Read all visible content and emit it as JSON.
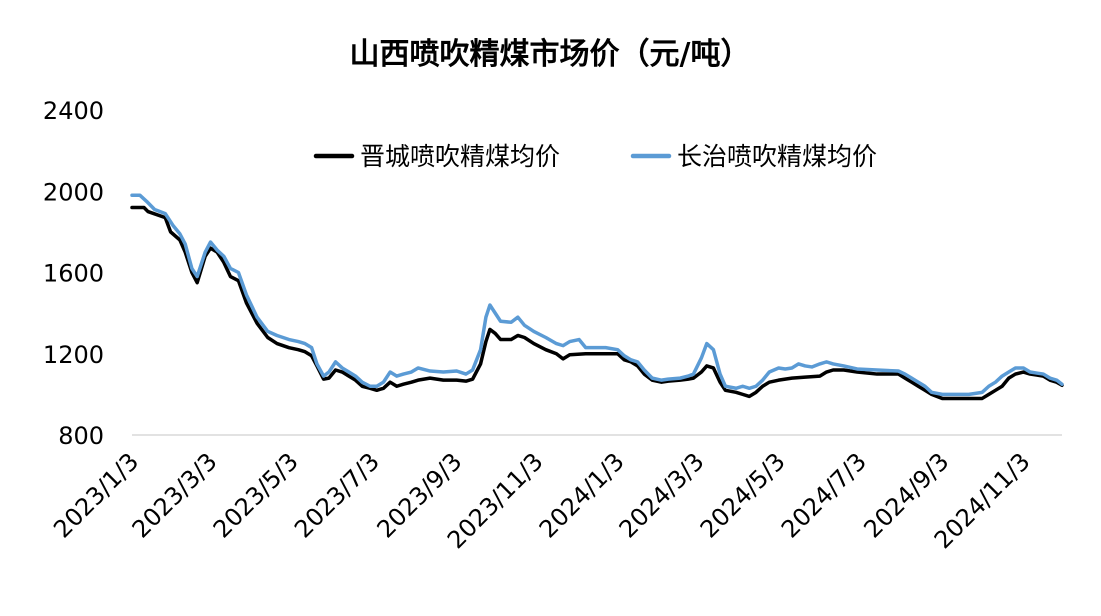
{
  "chart_data": {
    "type": "line",
    "title": "山西喷吹精煤市场价（元/吨）",
    "xlabel": "",
    "ylabel": "",
    "ylim": [
      800,
      2400
    ],
    "yticks": [
      800,
      1200,
      1600,
      2000,
      2400
    ],
    "xticks": [
      "2023/1/3",
      "2023/3/3",
      "2023/5/3",
      "2023/7/3",
      "2023/9/3",
      "2023/11/3",
      "2024/1/3",
      "2024/3/3",
      "2024/5/3",
      "2024/7/3",
      "2024/9/3",
      "2024/11/3"
    ],
    "xrange": [
      "2023-01-03",
      "2024-12-02"
    ],
    "grid": false,
    "legend_position": "top-right",
    "series": [
      {
        "name": "晋城喷吹精煤均价",
        "color": "#000000",
        "points": [
          [
            "2023-01-03",
            1920
          ],
          [
            "2023-01-12",
            1920
          ],
          [
            "2023-01-15",
            1900
          ],
          [
            "2023-01-28",
            1870
          ],
          [
            "2023-02-01",
            1800
          ],
          [
            "2023-02-08",
            1760
          ],
          [
            "2023-02-12",
            1700
          ],
          [
            "2023-02-17",
            1600
          ],
          [
            "2023-02-21",
            1550
          ],
          [
            "2023-02-27",
            1680
          ],
          [
            "2023-03-03",
            1720
          ],
          [
            "2023-03-08",
            1700
          ],
          [
            "2023-03-13",
            1650
          ],
          [
            "2023-03-18",
            1580
          ],
          [
            "2023-03-24",
            1560
          ],
          [
            "2023-03-30",
            1450
          ],
          [
            "2023-04-07",
            1350
          ],
          [
            "2023-04-15",
            1280
          ],
          [
            "2023-04-22",
            1250
          ],
          [
            "2023-05-01",
            1230
          ],
          [
            "2023-05-08",
            1220
          ],
          [
            "2023-05-13",
            1210
          ],
          [
            "2023-05-18",
            1190
          ],
          [
            "2023-05-22",
            1140
          ],
          [
            "2023-05-27",
            1075
          ],
          [
            "2023-05-31",
            1080
          ],
          [
            "2023-06-05",
            1120
          ],
          [
            "2023-06-10",
            1110
          ],
          [
            "2023-06-15",
            1090
          ],
          [
            "2023-06-20",
            1070
          ],
          [
            "2023-06-25",
            1040
          ],
          [
            "2023-07-01",
            1030
          ],
          [
            "2023-07-06",
            1020
          ],
          [
            "2023-07-11",
            1030
          ],
          [
            "2023-07-16",
            1060
          ],
          [
            "2023-07-21",
            1040
          ],
          [
            "2023-07-26",
            1050
          ],
          [
            "2023-08-01",
            1060
          ],
          [
            "2023-08-06",
            1070
          ],
          [
            "2023-08-15",
            1080
          ],
          [
            "2023-08-25",
            1070
          ],
          [
            "2023-09-04",
            1070
          ],
          [
            "2023-09-11",
            1065
          ],
          [
            "2023-09-16",
            1075
          ],
          [
            "2023-09-22",
            1150
          ],
          [
            "2023-09-26",
            1260
          ],
          [
            "2023-09-29",
            1320
          ],
          [
            "2023-10-03",
            1300
          ],
          [
            "2023-10-07",
            1270
          ],
          [
            "2023-10-15",
            1270
          ],
          [
            "2023-10-20",
            1290
          ],
          [
            "2023-10-25",
            1280
          ],
          [
            "2023-11-01",
            1250
          ],
          [
            "2023-11-10",
            1220
          ],
          [
            "2023-11-18",
            1200
          ],
          [
            "2023-11-23",
            1175
          ],
          [
            "2023-11-28",
            1195
          ],
          [
            "2023-12-10",
            1200
          ],
          [
            "2023-12-25",
            1200
          ],
          [
            "2024-01-03",
            1200
          ],
          [
            "2024-01-08",
            1170
          ],
          [
            "2024-01-13",
            1160
          ],
          [
            "2024-01-18",
            1140
          ],
          [
            "2024-01-23",
            1100
          ],
          [
            "2024-01-29",
            1070
          ],
          [
            "2024-02-05",
            1060
          ],
          [
            "2024-02-10",
            1065
          ],
          [
            "2024-02-19",
            1070
          ],
          [
            "2024-02-25",
            1075
          ],
          [
            "2024-02-29",
            1080
          ],
          [
            "2024-03-06",
            1110
          ],
          [
            "2024-03-10",
            1140
          ],
          [
            "2024-03-15",
            1130
          ],
          [
            "2024-03-20",
            1060
          ],
          [
            "2024-03-24",
            1020
          ],
          [
            "2024-04-01",
            1010
          ],
          [
            "2024-04-06",
            1000
          ],
          [
            "2024-04-11",
            990
          ],
          [
            "2024-04-16",
            1010
          ],
          [
            "2024-04-21",
            1040
          ],
          [
            "2024-04-26",
            1060
          ],
          [
            "2024-05-03",
            1070
          ],
          [
            "2024-05-13",
            1080
          ],
          [
            "2024-05-23",
            1085
          ],
          [
            "2024-06-03",
            1090
          ],
          [
            "2024-06-08",
            1110
          ],
          [
            "2024-06-13",
            1120
          ],
          [
            "2024-06-21",
            1120
          ],
          [
            "2024-07-01",
            1110
          ],
          [
            "2024-07-16",
            1100
          ],
          [
            "2024-08-01",
            1100
          ],
          [
            "2024-08-06",
            1080
          ],
          [
            "2024-08-11",
            1060
          ],
          [
            "2024-08-16",
            1040
          ],
          [
            "2024-08-21",
            1020
          ],
          [
            "2024-08-26",
            1000
          ],
          [
            "2024-09-03",
            980
          ],
          [
            "2024-09-13",
            980
          ],
          [
            "2024-09-23",
            980
          ],
          [
            "2024-10-03",
            980
          ],
          [
            "2024-10-08",
            1000
          ],
          [
            "2024-10-13",
            1020
          ],
          [
            "2024-10-18",
            1040
          ],
          [
            "2024-10-23",
            1080
          ],
          [
            "2024-10-28",
            1100
          ],
          [
            "2024-11-03",
            1110
          ],
          [
            "2024-11-08",
            1100
          ],
          [
            "2024-11-13",
            1095
          ],
          [
            "2024-11-18",
            1090
          ],
          [
            "2024-11-23",
            1070
          ],
          [
            "2024-11-28",
            1060
          ],
          [
            "2024-12-02",
            1045
          ]
        ]
      },
      {
        "name": "长治喷吹精煤均价",
        "color": "#5B9BD5",
        "points": [
          [
            "2023-01-03",
            1980
          ],
          [
            "2023-01-09",
            1980
          ],
          [
            "2023-01-14",
            1950
          ],
          [
            "2023-01-20",
            1910
          ],
          [
            "2023-01-28",
            1890
          ],
          [
            "2023-02-03",
            1830
          ],
          [
            "2023-02-08",
            1790
          ],
          [
            "2023-02-12",
            1740
          ],
          [
            "2023-02-17",
            1620
          ],
          [
            "2023-02-21",
            1580
          ],
          [
            "2023-02-27",
            1700
          ],
          [
            "2023-03-03",
            1750
          ],
          [
            "2023-03-08",
            1710
          ],
          [
            "2023-03-13",
            1680
          ],
          [
            "2023-03-18",
            1620
          ],
          [
            "2023-03-24",
            1600
          ],
          [
            "2023-03-30",
            1490
          ],
          [
            "2023-04-07",
            1380
          ],
          [
            "2023-04-15",
            1310
          ],
          [
            "2023-04-22",
            1290
          ],
          [
            "2023-05-01",
            1270
          ],
          [
            "2023-05-08",
            1260
          ],
          [
            "2023-05-13",
            1250
          ],
          [
            "2023-05-18",
            1230
          ],
          [
            "2023-05-22",
            1150
          ],
          [
            "2023-05-27",
            1090
          ],
          [
            "2023-05-31",
            1110
          ],
          [
            "2023-06-05",
            1160
          ],
          [
            "2023-06-10",
            1130
          ],
          [
            "2023-06-15",
            1110
          ],
          [
            "2023-06-20",
            1090
          ],
          [
            "2023-06-25",
            1060
          ],
          [
            "2023-07-01",
            1040
          ],
          [
            "2023-07-06",
            1040
          ],
          [
            "2023-07-11",
            1060
          ],
          [
            "2023-07-16",
            1110
          ],
          [
            "2023-07-21",
            1090
          ],
          [
            "2023-07-26",
            1100
          ],
          [
            "2023-08-01",
            1110
          ],
          [
            "2023-08-06",
            1130
          ],
          [
            "2023-08-15",
            1115
          ],
          [
            "2023-08-25",
            1110
          ],
          [
            "2023-09-04",
            1115
          ],
          [
            "2023-09-11",
            1100
          ],
          [
            "2023-09-16",
            1120
          ],
          [
            "2023-09-22",
            1220
          ],
          [
            "2023-09-26",
            1380
          ],
          [
            "2023-09-29",
            1440
          ],
          [
            "2023-10-03",
            1400
          ],
          [
            "2023-10-07",
            1360
          ],
          [
            "2023-10-15",
            1355
          ],
          [
            "2023-10-20",
            1380
          ],
          [
            "2023-10-25",
            1340
          ],
          [
            "2023-11-01",
            1310
          ],
          [
            "2023-11-10",
            1280
          ],
          [
            "2023-11-18",
            1250
          ],
          [
            "2023-11-23",
            1240
          ],
          [
            "2023-11-28",
            1260
          ],
          [
            "2023-12-05",
            1270
          ],
          [
            "2023-12-10",
            1230
          ],
          [
            "2023-12-25",
            1230
          ],
          [
            "2024-01-03",
            1220
          ],
          [
            "2024-01-08",
            1190
          ],
          [
            "2024-01-13",
            1170
          ],
          [
            "2024-01-18",
            1160
          ],
          [
            "2024-01-23",
            1120
          ],
          [
            "2024-01-29",
            1080
          ],
          [
            "2024-02-05",
            1070
          ],
          [
            "2024-02-10",
            1075
          ],
          [
            "2024-02-19",
            1080
          ],
          [
            "2024-02-25",
            1090
          ],
          [
            "2024-02-29",
            1100
          ],
          [
            "2024-03-06",
            1180
          ],
          [
            "2024-03-10",
            1250
          ],
          [
            "2024-03-15",
            1220
          ],
          [
            "2024-03-20",
            1100
          ],
          [
            "2024-03-24",
            1040
          ],
          [
            "2024-04-01",
            1030
          ],
          [
            "2024-04-06",
            1040
          ],
          [
            "2024-04-11",
            1030
          ],
          [
            "2024-04-16",
            1040
          ],
          [
            "2024-04-21",
            1070
          ],
          [
            "2024-04-26",
            1110
          ],
          [
            "2024-05-03",
            1130
          ],
          [
            "2024-05-08",
            1125
          ],
          [
            "2024-05-13",
            1130
          ],
          [
            "2024-05-18",
            1150
          ],
          [
            "2024-05-23",
            1140
          ],
          [
            "2024-05-28",
            1135
          ],
          [
            "2024-06-03",
            1150
          ],
          [
            "2024-06-08",
            1160
          ],
          [
            "2024-06-13",
            1150
          ],
          [
            "2024-06-21",
            1140
          ],
          [
            "2024-07-01",
            1125
          ],
          [
            "2024-07-16",
            1120
          ],
          [
            "2024-08-01",
            1115
          ],
          [
            "2024-08-06",
            1100
          ],
          [
            "2024-08-11",
            1080
          ],
          [
            "2024-08-16",
            1060
          ],
          [
            "2024-08-21",
            1040
          ],
          [
            "2024-08-26",
            1010
          ],
          [
            "2024-09-03",
            1000
          ],
          [
            "2024-09-13",
            1000
          ],
          [
            "2024-09-23",
            1000
          ],
          [
            "2024-10-03",
            1010
          ],
          [
            "2024-10-08",
            1040
          ],
          [
            "2024-10-13",
            1060
          ],
          [
            "2024-10-18",
            1090
          ],
          [
            "2024-10-23",
            1110
          ],
          [
            "2024-10-28",
            1130
          ],
          [
            "2024-11-03",
            1130
          ],
          [
            "2024-11-08",
            1110
          ],
          [
            "2024-11-13",
            1105
          ],
          [
            "2024-11-18",
            1100
          ],
          [
            "2024-11-23",
            1080
          ],
          [
            "2024-11-28",
            1070
          ],
          [
            "2024-12-02",
            1050
          ]
        ]
      }
    ]
  }
}
